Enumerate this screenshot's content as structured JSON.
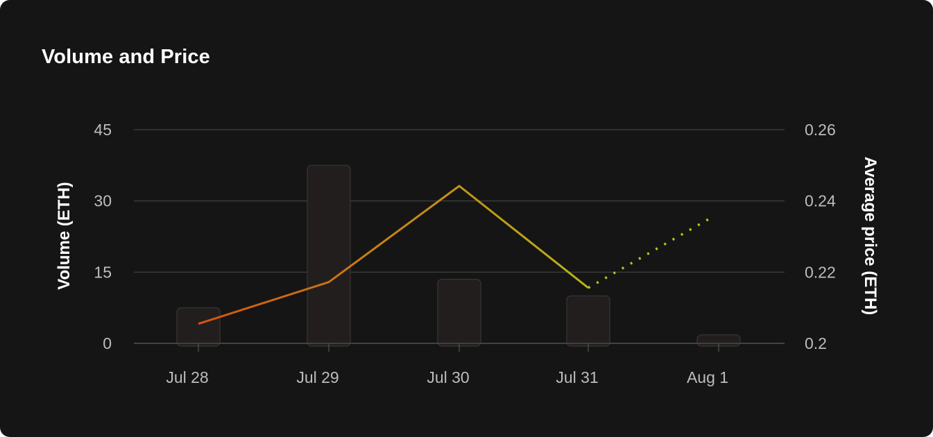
{
  "card": {
    "title": "Volume and Price"
  },
  "chart_data": {
    "type": "bar",
    "categories": [
      "Jul 28",
      "Jul 29",
      "Jul 30",
      "Jul 31",
      "Aug 1"
    ],
    "series": [
      {
        "name": "Volume (ETH)",
        "type": "bar",
        "axis": "left",
        "values": [
          7.5,
          37.5,
          13.5,
          10,
          1.8
        ]
      },
      {
        "name": "Average price (ETH)",
        "type": "line",
        "axis": "right",
        "values": [
          0.2055,
          0.2172,
          0.2442,
          0.2156,
          null
        ]
      },
      {
        "name": "Average price (ETH)",
        "type": "line",
        "style": "dotted",
        "axis": "right",
        "values": [
          null,
          null,
          null,
          0.2156,
          0.2356
        ]
      }
    ],
    "title": "Volume and Price",
    "xlabel": "",
    "ylabel": "Volume (ETH)",
    "ylabel_right": "Average price (ETH)",
    "ylim": [
      0,
      45
    ],
    "ylim_right": [
      0.2,
      0.26
    ],
    "yticks": [
      "0",
      "15",
      "30",
      "45"
    ],
    "yticks_values": [
      0,
      15,
      30,
      45
    ],
    "yticks_right": [
      "0.2",
      "0.22",
      "0.24",
      "0.26"
    ],
    "yticks_right_values": [
      0.2,
      0.22,
      0.24,
      0.26
    ],
    "grid": true,
    "legend": "none",
    "colors": {
      "bar_fill": "#221e1d",
      "bar_stroke": "#3a3634",
      "grid": "#3a3a3a",
      "line_start": "#d4540e",
      "line_end": "#b9b31a",
      "dotted": "#b7c51c"
    }
  }
}
